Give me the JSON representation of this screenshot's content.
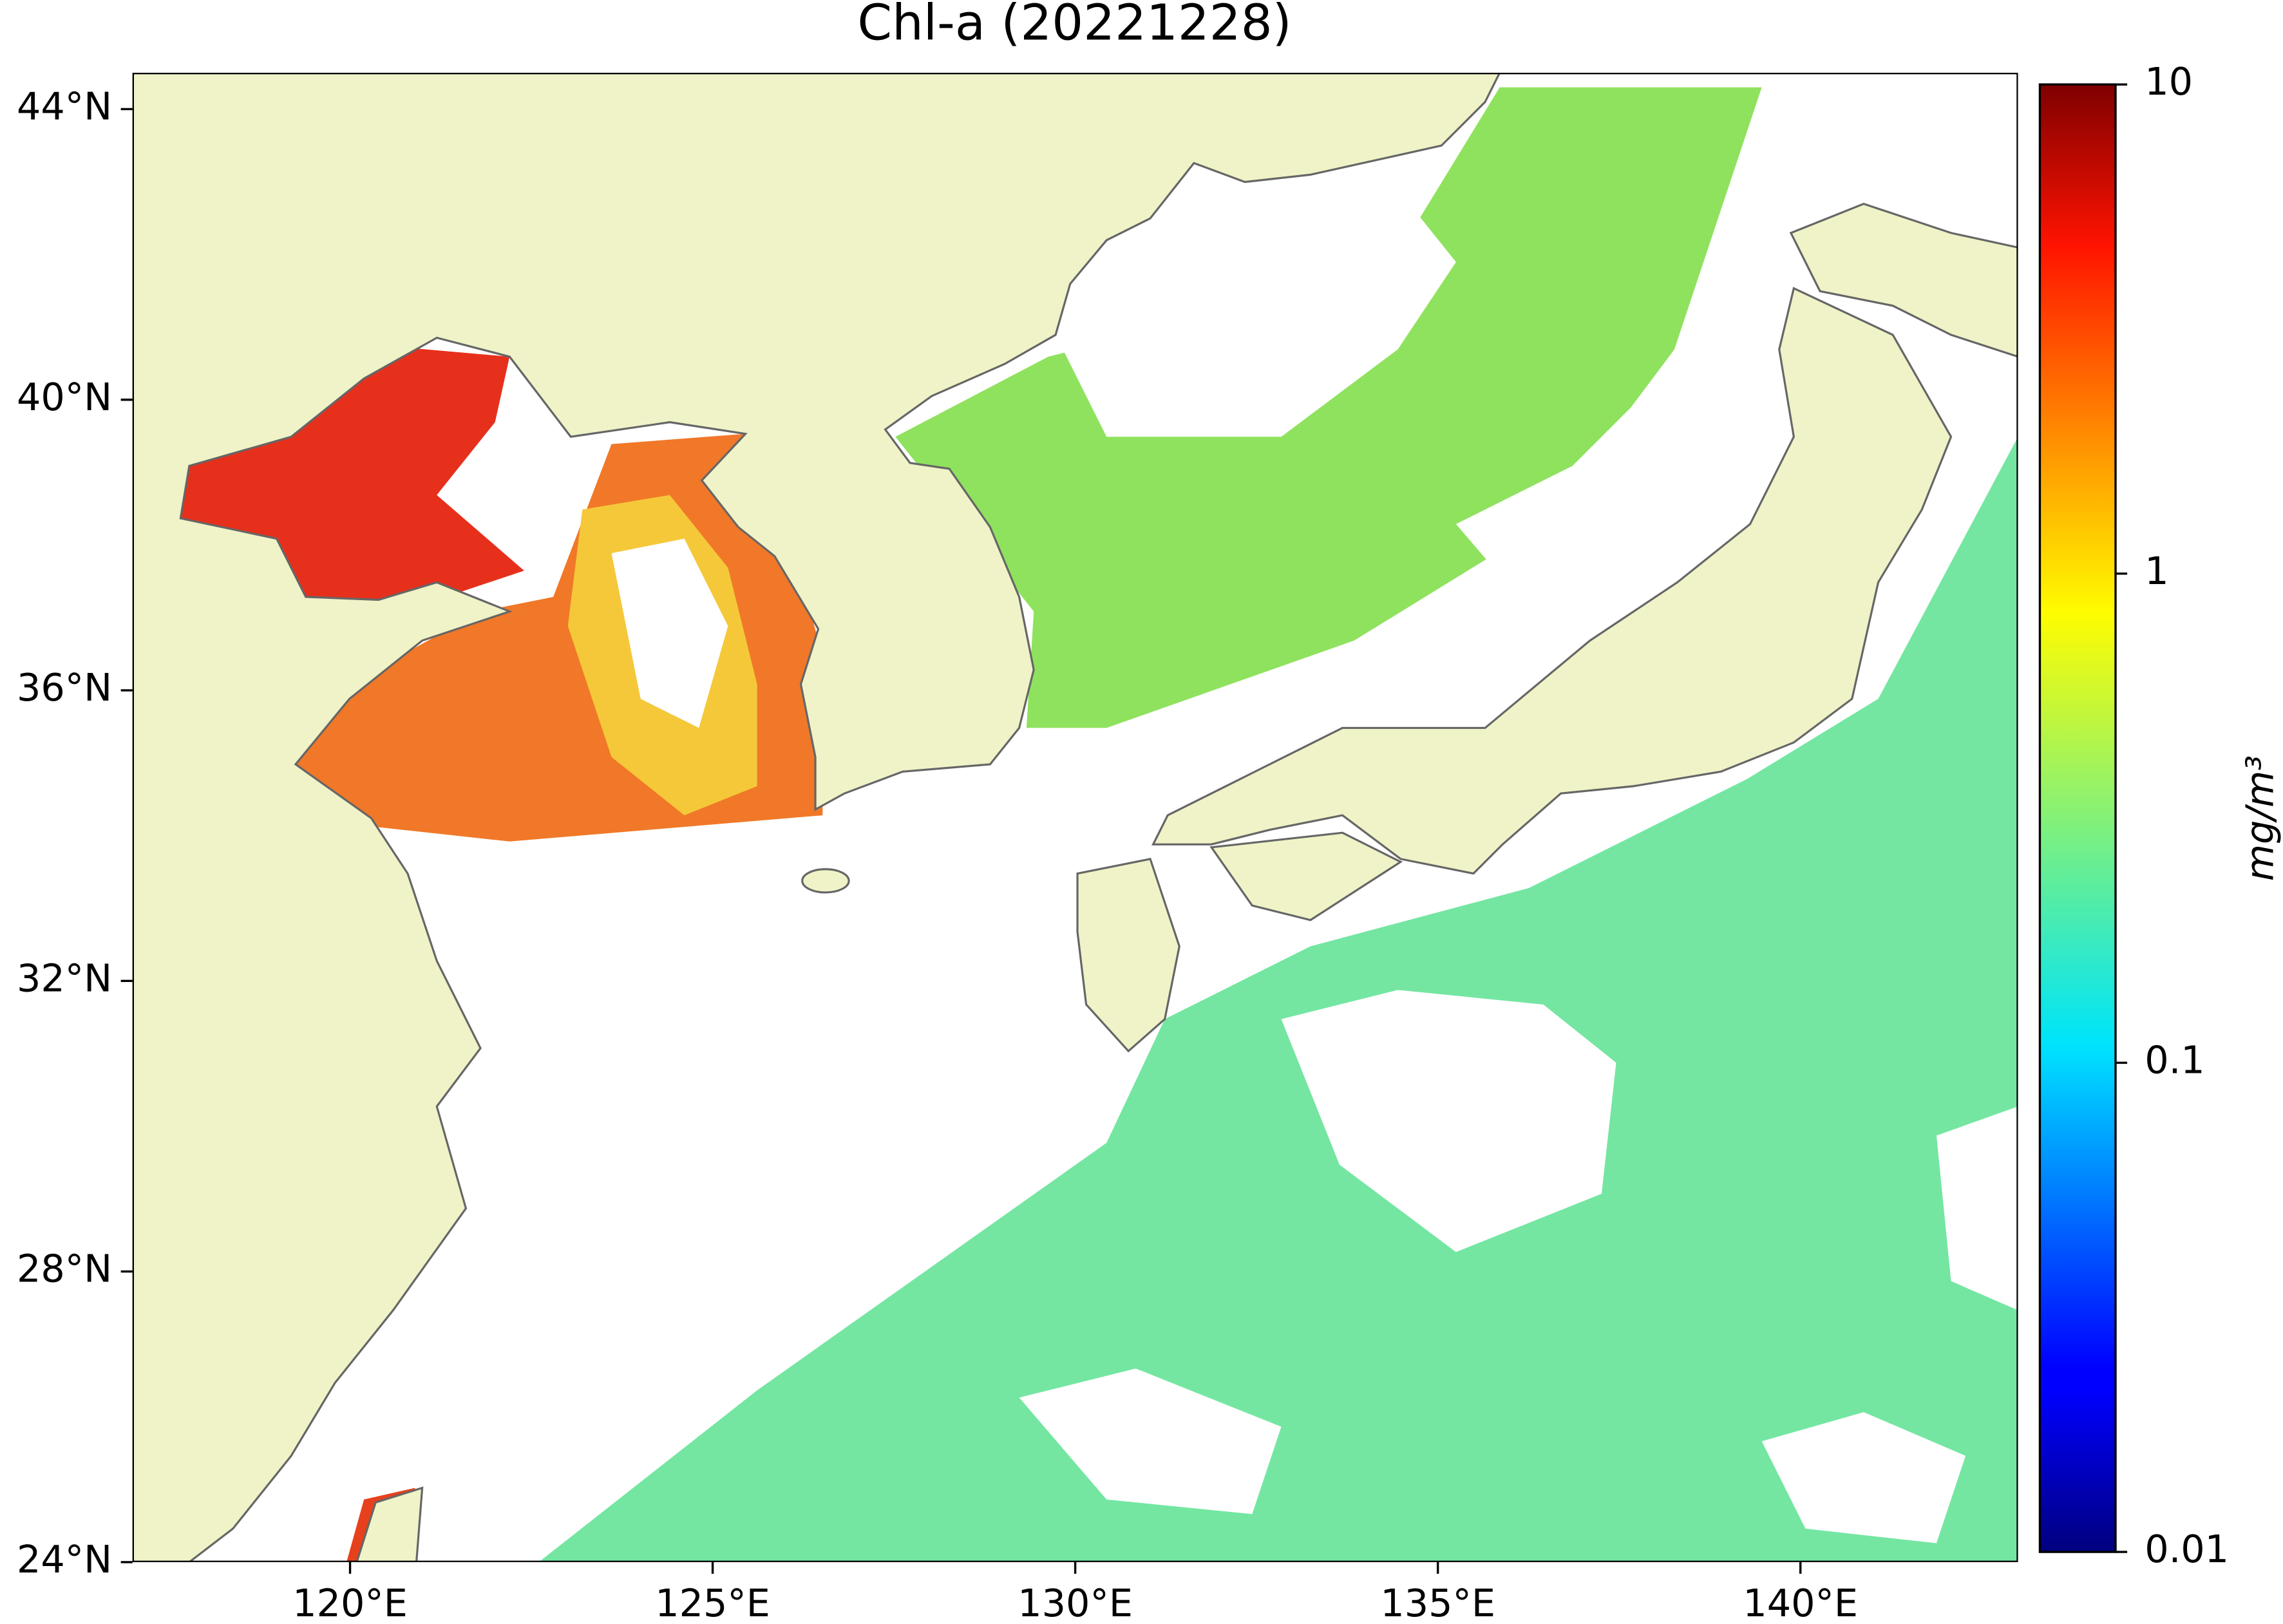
{
  "chart_data": {
    "type": "map",
    "title": "Chl-a (20221228)",
    "xlim": [
      117,
      143
    ],
    "ylim": [
      24,
      44.5
    ],
    "xticks": [
      {
        "value": 120,
        "label": "120°E"
      },
      {
        "value": 125,
        "label": "125°E"
      },
      {
        "value": 130,
        "label": "130°E"
      },
      {
        "value": 135,
        "label": "135°E"
      },
      {
        "value": 140,
        "label": "140°E"
      }
    ],
    "yticks": [
      {
        "value": 24,
        "label": "24°N"
      },
      {
        "value": 28,
        "label": "28°N"
      },
      {
        "value": 32,
        "label": "32°N"
      },
      {
        "value": 36,
        "label": "36°N"
      },
      {
        "value": 40,
        "label": "40°N"
      },
      {
        "value": 44,
        "label": "44°N"
      }
    ],
    "colorbar": {
      "label": "mg/m³",
      "colormap": "jet",
      "log_scale": true,
      "lim": [
        0.01,
        10
      ],
      "ticks": [
        0.01,
        0.1,
        1,
        10
      ]
    }
  }
}
